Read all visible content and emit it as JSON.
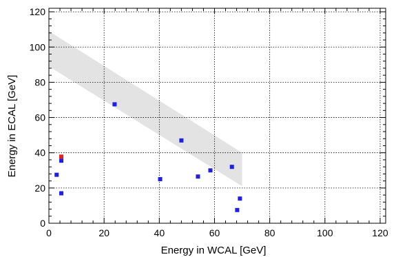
{
  "chart_data": {
    "type": "scatter",
    "xlabel": "Energy in WCAL [GeV]",
    "ylabel": "Energy in ECAL [GeV]",
    "xlim": [
      0,
      122
    ],
    "ylim": [
      0,
      122
    ],
    "x_ticks": [
      0,
      20,
      40,
      60,
      80,
      100,
      120
    ],
    "y_ticks": [
      0,
      20,
      40,
      60,
      80,
      100,
      120
    ],
    "x_tick_labels": [
      "0",
      "20",
      "40",
      "60",
      "80",
      "100",
      "120"
    ],
    "y_tick_labels": [
      "0",
      "20",
      "40",
      "60",
      "80",
      "100",
      "120"
    ],
    "grid": true,
    "band": {
      "color": "#e3e3e3",
      "x": [
        0,
        70
      ],
      "upper": [
        109,
        40
      ],
      "lower": [
        89,
        21
      ]
    },
    "series": [
      {
        "color": "#1f1fe6",
        "points": [
          [
            2.8,
            27.5
          ],
          [
            4.5,
            35.5
          ],
          [
            4.5,
            17.0
          ],
          [
            23.8,
            67.5
          ],
          [
            40.3,
            25.0
          ],
          [
            48.0,
            47.0
          ],
          [
            54.0,
            26.5
          ],
          [
            58.5,
            30.0
          ],
          [
            66.3,
            32.0
          ],
          [
            68.2,
            7.5
          ],
          [
            69.2,
            14.0
          ]
        ]
      },
      {
        "color": "#e61f1f",
        "points": [
          [
            4.5,
            37.8
          ]
        ]
      }
    ]
  }
}
